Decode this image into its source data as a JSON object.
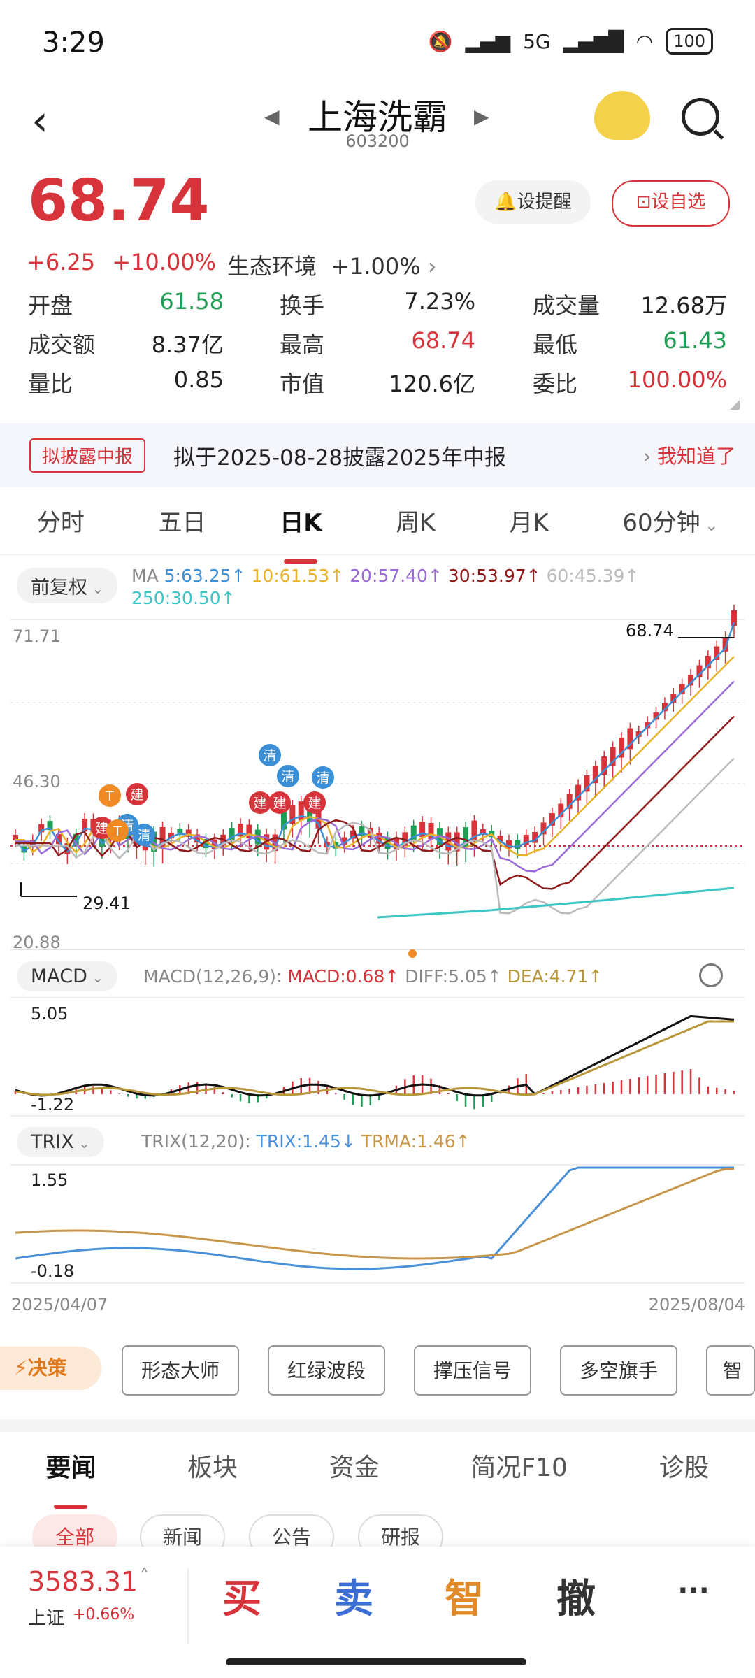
{
  "status": {
    "time": "3:29",
    "battery": "100",
    "network": "5G"
  },
  "header": {
    "title": "上海洗霸",
    "code": "603200"
  },
  "quote": {
    "price": "68.74",
    "change": "+6.25",
    "change_pct": "+10.00%",
    "sector_name": "生态环境",
    "sector_pct": "+1.00%",
    "alert_label": "设提醒",
    "watch_label": "设自选",
    "stats": [
      {
        "k": "开盘",
        "v": "61.58",
        "c": "green"
      },
      {
        "k": "换手",
        "v": "7.23%",
        "c": "black"
      },
      {
        "k": "成交量",
        "v": "12.68万",
        "c": "black"
      },
      {
        "k": "成交额",
        "v": "8.37亿",
        "c": "black"
      },
      {
        "k": "最高",
        "v": "68.74",
        "c": "red"
      },
      {
        "k": "最低",
        "v": "61.43",
        "c": "green"
      },
      {
        "k": "量比",
        "v": "0.85",
        "c": "black"
      },
      {
        "k": "市值",
        "v": "120.6亿",
        "c": "black"
      },
      {
        "k": "委比",
        "v": "100.00%",
        "c": "red"
      }
    ]
  },
  "notice": {
    "tag": "拟披露中报",
    "text": "拟于2025-08-28披露2025年中报",
    "action": "我知道了"
  },
  "period_tabs": [
    "分时",
    "五日",
    "日K",
    "周K",
    "月K",
    "60分钟"
  ],
  "period_active": 2,
  "chart": {
    "adjust_label": "前复权",
    "ma_prefix": "MA",
    "ma": [
      {
        "label": "5:63.25↑",
        "color": "#3b8fd6"
      },
      {
        "label": "10:61.53↑",
        "color": "#e8b22a"
      },
      {
        "label": "20:57.40↑",
        "color": "#9a6bd6"
      },
      {
        "label": "30:53.97↑",
        "color": "#8e1c1c"
      },
      {
        "label": "60:45.39↑",
        "color": "#bbbbbb"
      },
      {
        "label": "250:30.50↑",
        "color": "#3ec6c6"
      }
    ],
    "y_top": "71.71",
    "y_mid": "46.30",
    "y_bot": "20.88",
    "high_mark": "68.74",
    "low_mark": "29.41",
    "macd_label": "MACD",
    "macd_params": "MACD(12,26,9):",
    "macd_value": "MACD:0.68↑",
    "diff_value": "DIFF:5.05↑",
    "dea_value": "DEA:4.71↑",
    "macd_top": "5.05",
    "macd_bot": "-1.22",
    "trix_label": "TRIX",
    "trix_params": "TRIX(12,20):",
    "trix_value": "TRIX:1.45↓",
    "trma_value": "TRMA:1.46↑",
    "trix_top": "1.55",
    "trix_bot": "-0.18",
    "date_start": "2025/04/07",
    "date_end": "2025/08/04",
    "markers": [
      {
        "t": "T",
        "c": "#f08a24"
      },
      {
        "t": "建",
        "c": "#d6343a"
      },
      {
        "t": "建",
        "c": "#d6343a"
      },
      {
        "t": "清",
        "c": "#3b8fd6"
      },
      {
        "t": "T",
        "c": "#f08a24"
      },
      {
        "t": "清",
        "c": "#3b8fd6"
      },
      {
        "t": "清",
        "c": "#3b8fd6"
      },
      {
        "t": "清",
        "c": "#3b8fd6"
      },
      {
        "t": "建",
        "c": "#d6343a"
      },
      {
        "t": "建",
        "c": "#d6343a"
      },
      {
        "t": "清",
        "c": "#3b8fd6"
      },
      {
        "t": "建",
        "c": "#d6343a"
      }
    ]
  },
  "decision": {
    "label": "决策",
    "buttons": [
      "形态大师",
      "红绿波段",
      "撑压信号",
      "多空旗手",
      "智能"
    ]
  },
  "news_tabs": [
    "要闻",
    "板块",
    "资金",
    "简况F10",
    "诊股"
  ],
  "news_sub": [
    "全部",
    "新闻",
    "公告",
    "研报"
  ],
  "bottom": {
    "index_value": "3583.31",
    "index_name": "上证",
    "index_change": "+0.66%",
    "buy": "买",
    "sell": "卖",
    "smart": "智",
    "cancel": "撤",
    "more": "···"
  }
}
